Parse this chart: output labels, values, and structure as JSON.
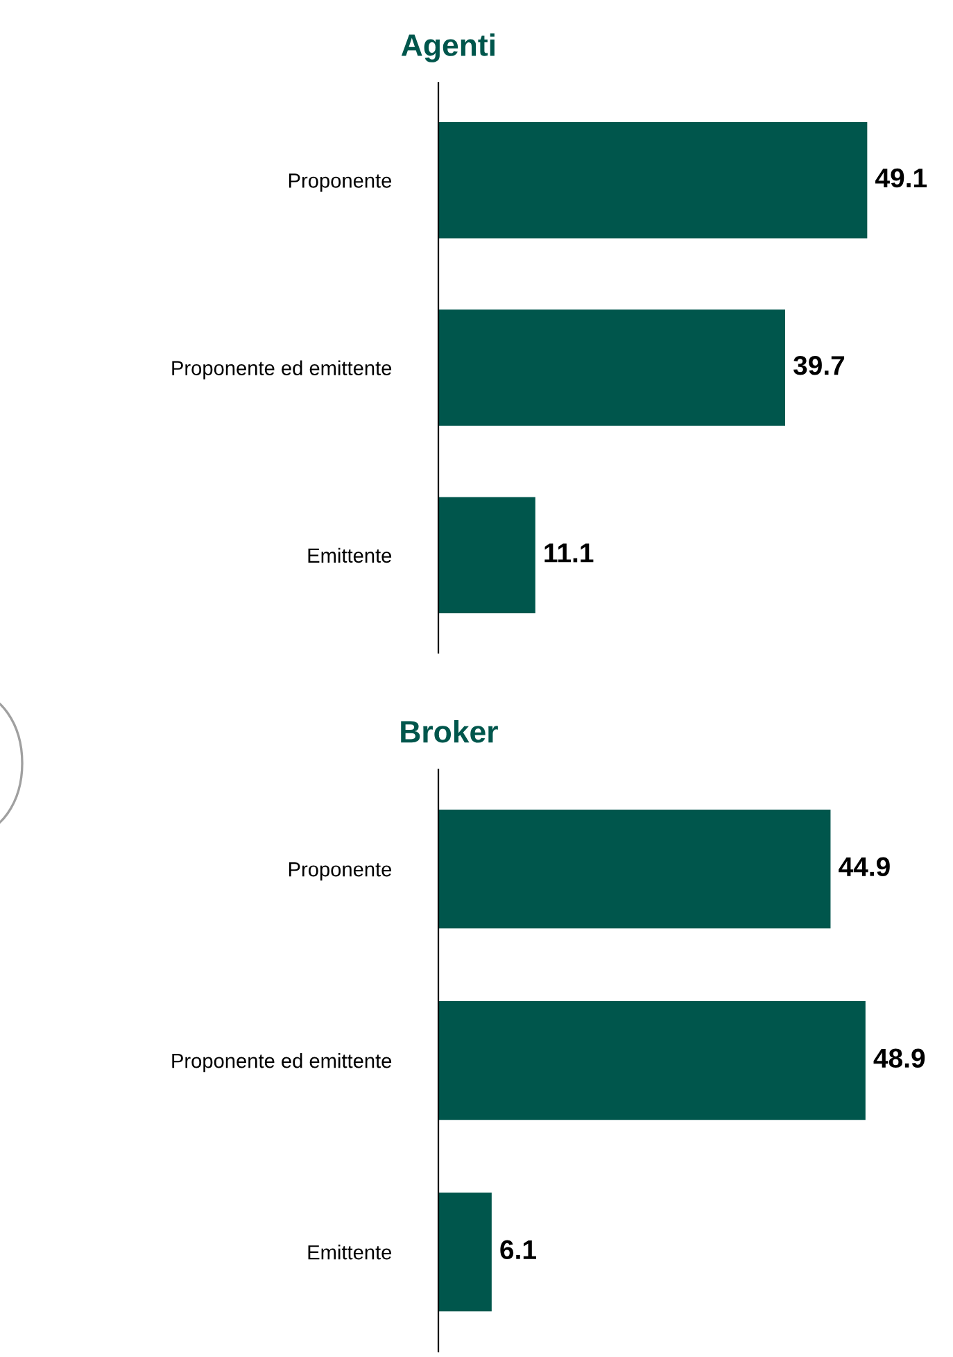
{
  "chart_data": [
    {
      "type": "bar",
      "orientation": "horizontal",
      "title": "Agenti",
      "categories": [
        "Proponente",
        "Proponente ed emittente",
        "Emittente"
      ],
      "values": [
        49.1,
        39.7,
        11.1
      ],
      "color": "#00564c",
      "data_labels": true,
      "tick_labels": "y",
      "grid": false,
      "legend": false
    },
    {
      "type": "bar",
      "orientation": "horizontal",
      "title": "Broker",
      "categories": [
        "Proponente",
        "Proponente ed emittente",
        "Emittente"
      ],
      "values": [
        44.9,
        48.9,
        6.1
      ],
      "color": "#00564c",
      "data_labels": true,
      "tick_labels": "y",
      "grid": false,
      "legend": false
    }
  ]
}
